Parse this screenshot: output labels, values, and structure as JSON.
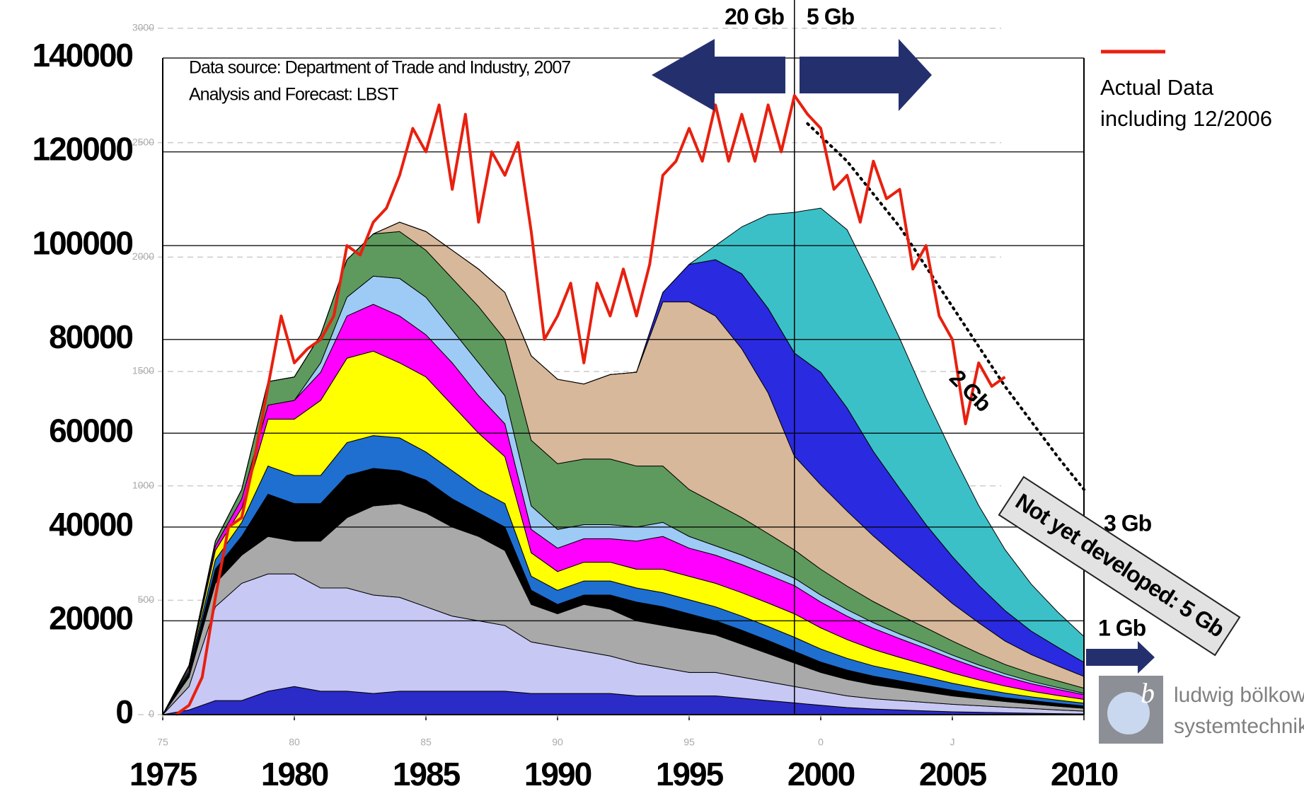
{
  "chart_data": {
    "type": "stacked_area",
    "x": [
      1975,
      1976,
      1977,
      1978,
      1979,
      1980,
      1981,
      1982,
      1983,
      1984,
      1985,
      1986,
      1987,
      1988,
      1989,
      1990,
      1991,
      1992,
      1993,
      1994,
      1995,
      1996,
      1997,
      1998,
      1999,
      2000,
      2001,
      2002,
      2003,
      2004,
      2005,
      2006,
      2007,
      2008,
      2009,
      2010
    ],
    "series": [
      {
        "color": "#2b2bc8",
        "values": [
          0,
          1000,
          3000,
          3000,
          5000,
          6000,
          5000,
          5000,
          4500,
          5000,
          5000,
          5000,
          5000,
          5000,
          4500,
          4500,
          4500,
          4500,
          4000,
          4000,
          4000,
          4000,
          3500,
          3000,
          2500,
          2000,
          1500,
          1200,
          1000,
          800,
          600,
          500,
          400,
          300,
          200,
          150
        ]
      },
      {
        "color": "#c8c8f5",
        "values": [
          0,
          5000,
          20000,
          25000,
          25000,
          24000,
          22000,
          22000,
          21000,
          20000,
          18000,
          16000,
          15000,
          14000,
          11000,
          10000,
          9000,
          8000,
          7000,
          6000,
          5000,
          5000,
          4500,
          4000,
          3500,
          3000,
          2500,
          2200,
          2000,
          1800,
          1600,
          1400,
          1200,
          1000,
          800,
          600
        ]
      },
      {
        "color": "#a9a9a9",
        "values": [
          0,
          2000,
          5000,
          6000,
          8000,
          7000,
          10000,
          15000,
          19000,
          20000,
          20000,
          19000,
          18000,
          16000,
          8000,
          7000,
          10000,
          10000,
          9000,
          9000,
          9000,
          8000,
          7000,
          6000,
          5000,
          4000,
          3500,
          3000,
          2600,
          2200,
          1800,
          1500,
          1200,
          1000,
          800,
          600
        ]
      },
      {
        "color": "#000000",
        "values": [
          0,
          1000,
          3000,
          4000,
          9000,
          8000,
          8000,
          9000,
          8000,
          7000,
          7000,
          6000,
          5000,
          5000,
          3000,
          2000,
          2000,
          3000,
          4000,
          4000,
          3500,
          3000,
          3000,
          2800,
          2500,
          2200,
          2000,
          1800,
          1600,
          1400,
          1200,
          1000,
          800,
          700,
          600,
          500
        ]
      },
      {
        "color": "#1f6fd1",
        "values": [
          0,
          500,
          2000,
          3000,
          6000,
          6000,
          6000,
          7000,
          7000,
          7000,
          6000,
          6000,
          5000,
          5000,
          3000,
          3000,
          3000,
          3000,
          3000,
          3000,
          3000,
          3000,
          3000,
          3000,
          3000,
          2800,
          2500,
          2200,
          2000,
          1800,
          1500,
          1200,
          1000,
          800,
          700,
          600
        ]
      },
      {
        "color": "#ffff00",
        "values": [
          0,
          500,
          2000,
          3000,
          10000,
          12000,
          16000,
          18000,
          18000,
          16000,
          16000,
          14000,
          12000,
          10000,
          5000,
          4000,
          4000,
          4000,
          4000,
          5000,
          5000,
          5000,
          5000,
          5000,
          5000,
          4500,
          4000,
          3500,
          3000,
          2600,
          2200,
          1800,
          1500,
          1200,
          1000,
          800
        ]
      },
      {
        "color": "#ff00ff",
        "values": [
          0,
          500,
          1000,
          2000,
          3000,
          4000,
          6000,
          9000,
          10000,
          10000,
          9000,
          9000,
          8000,
          7000,
          5000,
          5000,
          5000,
          5000,
          6000,
          7000,
          6000,
          6000,
          6000,
          6000,
          6000,
          5500,
          5000,
          4500,
          4000,
          3500,
          3000,
          2500,
          2000,
          1600,
          1300,
          1000
        ]
      },
      {
        "color": "#9ecbf5",
        "values": [
          0,
          0,
          0,
          0,
          0,
          0,
          2000,
          4000,
          6000,
          8000,
          8000,
          7000,
          7000,
          6000,
          5000,
          4000,
          3000,
          3000,
          3000,
          3000,
          2500,
          2000,
          2000,
          1800,
          1600,
          1500,
          1400,
          1200,
          1000,
          900,
          800,
          700,
          600,
          500,
          400,
          300
        ]
      },
      {
        "color": "#5e9a5e",
        "values": [
          0,
          0,
          1000,
          2000,
          5000,
          5000,
          6000,
          8000,
          9000,
          10000,
          10000,
          11000,
          12000,
          12000,
          14000,
          14000,
          14000,
          14000,
          13000,
          12000,
          10000,
          9000,
          8000,
          7000,
          6000,
          5500,
          5000,
          4500,
          4000,
          3500,
          3000,
          2500,
          2000,
          1700,
          1400,
          1100
        ]
      },
      {
        "color": "#d8b89a",
        "values": [
          0,
          0,
          0,
          0,
          0,
          0,
          0,
          0,
          0,
          2000,
          4000,
          6000,
          8000,
          10000,
          18000,
          18000,
          16000,
          18000,
          20000,
          35000,
          40000,
          40000,
          36000,
          30000,
          20000,
          18000,
          16000,
          14000,
          12000,
          10000,
          8000,
          6500,
          5000,
          4000,
          3200,
          2500
        ]
      },
      {
        "color": "#2a2ae0",
        "values": [
          0,
          0,
          0,
          0,
          0,
          0,
          0,
          0,
          0,
          0,
          0,
          0,
          0,
          0,
          0,
          0,
          0,
          0,
          0,
          2000,
          8000,
          12000,
          16000,
          18000,
          22000,
          24000,
          22000,
          18000,
          15000,
          12000,
          10000,
          8000,
          6500,
          5000,
          4000,
          3000
        ]
      },
      {
        "color": "#3cc0c8",
        "values": [
          0,
          0,
          0,
          0,
          0,
          0,
          0,
          0,
          0,
          0,
          0,
          0,
          0,
          0,
          0,
          0,
          0,
          0,
          0,
          0,
          0,
          3000,
          10000,
          20000,
          30000,
          35000,
          38000,
          36000,
          32000,
          27000,
          22000,
          17000,
          13000,
          10000,
          7500,
          5500
        ]
      }
    ],
    "actual": {
      "name": [
        "Actual Data",
        "including 12/2006"
      ],
      "color": "#e8200f",
      "x": [
        1975.5,
        1976,
        1976.5,
        1977,
        1977.5,
        1978,
        1978.5,
        1979,
        1979.5,
        1980,
        1980.5,
        1981,
        1981.5,
        1982,
        1982.5,
        1983,
        1983.5,
        1984,
        1984.5,
        1985,
        1985.5,
        1986,
        1986.5,
        1987,
        1987.5,
        1988,
        1988.5,
        1989,
        1989.5,
        1990,
        1990.5,
        1991,
        1991.5,
        1992,
        1992.5,
        1993,
        1993.5,
        1994,
        1994.5,
        1995,
        1995.5,
        1996,
        1996.5,
        1997,
        1997.5,
        1998,
        1998.5,
        1999,
        1999.5,
        2000,
        2000.5,
        2001,
        2001.5,
        2002,
        2002.5,
        2003,
        2003.5,
        2004,
        2004.5,
        2005,
        2005.5,
        2006,
        2006.5,
        2007
      ],
      "values": [
        0,
        2000,
        8000,
        25000,
        40000,
        42000,
        55000,
        70000,
        85000,
        75000,
        78000,
        80000,
        85000,
        100000,
        98000,
        105000,
        108000,
        115000,
        125000,
        120000,
        130000,
        112000,
        128000,
        105000,
        120000,
        115000,
        122000,
        103000,
        80000,
        85000,
        92000,
        75000,
        92000,
        85000,
        95000,
        85000,
        96000,
        115000,
        118000,
        125000,
        118000,
        130000,
        118000,
        128000,
        118000,
        130000,
        120000,
        132000,
        128000,
        125000,
        112000,
        115000,
        105000,
        118000,
        110000,
        112000,
        95000,
        100000,
        85000,
        80000,
        62000,
        75000,
        70000,
        72000
      ]
    },
    "forecast": {
      "x": [
        1999.5,
        2001,
        2003,
        2005,
        2007,
        2009,
        2010
      ],
      "values": [
        126000,
        118000,
        104000,
        87000,
        70000,
        55000,
        48000
      ]
    },
    "divider": 1999,
    "xlim": [
      1975,
      2010
    ],
    "xticks": [
      1975,
      1980,
      1985,
      1990,
      1995,
      2000,
      2005,
      2010
    ],
    "x2ticks": [
      {
        "value": 1975,
        "label": "75"
      },
      {
        "value": 1980,
        "label": "80"
      },
      {
        "value": 1985,
        "label": "85"
      },
      {
        "value": 1990,
        "label": "90"
      },
      {
        "value": 1995,
        "label": "95"
      },
      {
        "value": 2000,
        "label": "0"
      },
      {
        "value": 2005,
        "label": "J"
      }
    ],
    "ylim": [
      0,
      140000
    ],
    "yticks": [
      0,
      20000,
      40000,
      60000,
      80000,
      100000,
      120000,
      140000
    ],
    "y2lim": [
      0,
      3000
    ],
    "y2ticks": [
      0,
      500,
      1000,
      1500,
      2000,
      2500,
      3000
    ],
    "grid": true,
    "annotations": {
      "source": "Data source: Department of Trade and Industry, 2007",
      "analysis": "Analysis and Forecast: LBST",
      "left_arrow": "20 Gb",
      "right_arrow": "5 Gb",
      "forecast": "2 Gb",
      "three": "3 Gb",
      "one": "1 Gb",
      "box": "Not yet developed: 5 Gb"
    },
    "logo": {
      "mark": "b",
      "line1": "ludwig bölkow",
      "line2": "systemtechnik"
    }
  }
}
